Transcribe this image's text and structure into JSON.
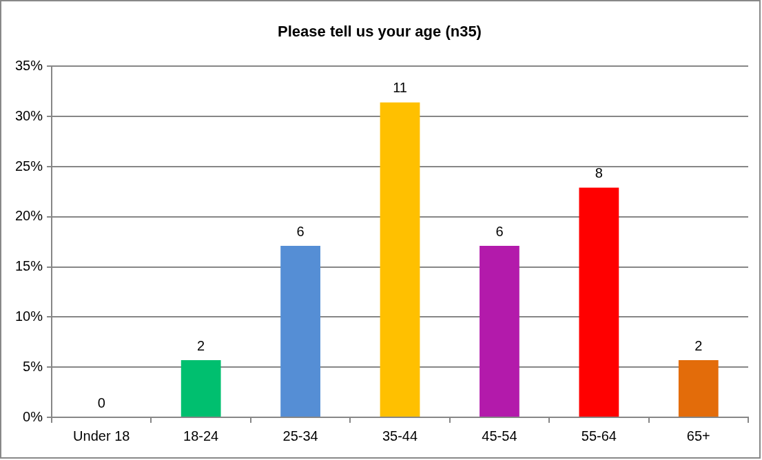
{
  "chart_data": {
    "type": "bar",
    "title": "Please tell us your age (n35)",
    "categories": [
      "Under 18",
      "18-24",
      "25-34",
      "35-44",
      "45-54",
      "55-64",
      "65+"
    ],
    "values": [
      0,
      5.7,
      17.1,
      31.4,
      17.1,
      22.9,
      5.7
    ],
    "colors": [
      "#4f81bd",
      "#00bf6f",
      "#558ed5",
      "#ffc000",
      "#b31aab",
      "#ff0000",
      "#e36c0a"
    ],
    "annotations": [
      {
        "text": "0",
        "x": "Under 18",
        "y": 0
      },
      {
        "text": "2",
        "x": "18-24",
        "y": 5.7
      },
      {
        "text": "6",
        "x": "25-34",
        "y": 17.1
      },
      {
        "text": "11",
        "x": "35-44",
        "y": 31.4
      },
      {
        "text": "6",
        "x": "45-54",
        "y": 17.1
      },
      {
        "text": "8",
        "x": "55-64",
        "y": 22.9
      },
      {
        "text": "2",
        "x": "65+",
        "y": 5.7
      }
    ],
    "ylim": [
      0,
      35
    ],
    "yticks": [
      {
        "value": 0,
        "label": "0%"
      },
      {
        "value": 5,
        "label": "5%"
      },
      {
        "value": 10,
        "label": "10%"
      },
      {
        "value": 15,
        "label": "15%"
      },
      {
        "value": 20,
        "label": "20%"
      },
      {
        "value": 25,
        "label": "25%"
      },
      {
        "value": 30,
        "label": "30%"
      },
      {
        "value": 35,
        "label": "35%"
      }
    ],
    "grid": "y",
    "legend": false
  }
}
